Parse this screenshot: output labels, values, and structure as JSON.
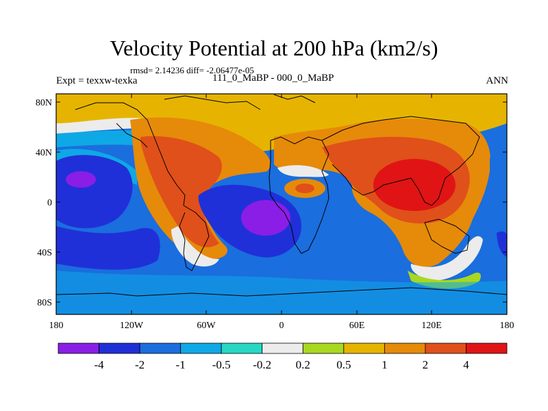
{
  "title": "Velocity Potential at 200 hPa (km2/s)",
  "stats_line": "rmsd= 2.14236 diff= -2.06477e-05",
  "expt_label": "Expt = texxw-texka",
  "comparison_label": "111_0_MaBP - 000_0_MaBP",
  "season_label": "ANN",
  "map": {
    "lat_ticks": [
      "80N",
      "40N",
      "0",
      "40S",
      "80S"
    ],
    "lon_ticks": [
      "180",
      "120W",
      "60W",
      "0",
      "60E",
      "120E",
      "180"
    ]
  },
  "colorbar": {
    "colors": [
      "#8a1ee6",
      "#2030d8",
      "#1a6ede",
      "#0fa8e6",
      "#26d8c4",
      "#ececec",
      "#a8d820",
      "#e6b400",
      "#e68a0a",
      "#e0501a",
      "#e01414"
    ],
    "labels": [
      "-4",
      "-2",
      "-1",
      "-0.5",
      "-0.2",
      "0.2",
      "0.5",
      "1",
      "2",
      "4"
    ]
  }
}
